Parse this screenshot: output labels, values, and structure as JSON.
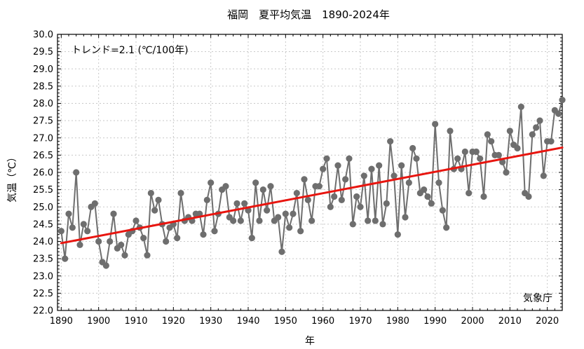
{
  "chart_data": {
    "type": "line",
    "title": "福岡　夏平均気温　1890-2024年",
    "xlabel": "年",
    "ylabel": "気温（℃）",
    "xlim": [
      1889,
      2024
    ],
    "ylim": [
      22.0,
      30.0
    ],
    "x_ticks": [
      "1890",
      "1900",
      "1910",
      "1920",
      "1930",
      "1940",
      "1950",
      "1960",
      "1970",
      "1980",
      "1990",
      "2000",
      "2010",
      "2020"
    ],
    "y_ticks": [
      "22.0",
      "22.5",
      "23.0",
      "23.5",
      "24.0",
      "24.5",
      "25.0",
      "25.5",
      "26.0",
      "26.5",
      "27.0",
      "27.5",
      "28.0",
      "28.5",
      "29.0",
      "29.5",
      "30.0"
    ],
    "grid": true,
    "trend_label": "トレンド=2.1 (℃/100年)",
    "source_label": "気象庁",
    "series": [
      {
        "color": "#6e6e6e",
        "x": [
          1890,
          1891,
          1892,
          1893,
          1894,
          1895,
          1896,
          1897,
          1898,
          1899,
          1900,
          1901,
          1902,
          1903,
          1904,
          1905,
          1906,
          1907,
          1908,
          1909,
          1910,
          1911,
          1912,
          1913,
          1914,
          1915,
          1916,
          1917,
          1918,
          1919,
          1920,
          1921,
          1922,
          1923,
          1924,
          1925,
          1926,
          1927,
          1928,
          1929,
          1930,
          1931,
          1932,
          1933,
          1934,
          1935,
          1936,
          1937,
          1938,
          1939,
          1940,
          1941,
          1942,
          1943,
          1944,
          1945,
          1946,
          1947,
          1948,
          1949,
          1950,
          1951,
          1952,
          1953,
          1954,
          1955,
          1956,
          1957,
          1958,
          1959,
          1960,
          1961,
          1962,
          1963,
          1964,
          1965,
          1966,
          1967,
          1968,
          1969,
          1970,
          1971,
          1972,
          1973,
          1974,
          1975,
          1976,
          1977,
          1978,
          1979,
          1980,
          1981,
          1982,
          1983,
          1984,
          1985,
          1986,
          1987,
          1988,
          1989,
          1990,
          1991,
          1992,
          1993,
          1994,
          1995,
          1996,
          1997,
          1998,
          1999,
          2000,
          2001,
          2002,
          2003,
          2004,
          2005,
          2006,
          2007,
          2008,
          2009,
          2010,
          2011,
          2012,
          2013,
          2014,
          2015,
          2016,
          2017,
          2018,
          2019,
          2020,
          2021,
          2022,
          2023,
          2024
        ],
        "values": [
          24.3,
          23.5,
          24.8,
          24.4,
          26.0,
          23.9,
          24.5,
          24.3,
          25.0,
          25.1,
          24.0,
          23.4,
          23.3,
          24.0,
          24.8,
          23.8,
          23.9,
          23.6,
          24.2,
          24.3,
          24.6,
          24.4,
          24.1,
          23.6,
          25.4,
          24.9,
          25.2,
          24.5,
          24.0,
          24.4,
          24.5,
          24.1,
          25.4,
          24.6,
          24.7,
          24.6,
          24.8,
          24.8,
          24.2,
          25.2,
          25.7,
          24.3,
          24.8,
          25.5,
          25.6,
          24.7,
          24.6,
          25.1,
          24.6,
          25.1,
          24.9,
          24.1,
          25.7,
          24.6,
          25.5,
          24.9,
          25.6,
          24.6,
          24.7,
          23.7,
          24.8,
          24.4,
          24.8,
          25.4,
          24.3,
          25.8,
          25.2,
          24.6,
          25.6,
          25.6,
          26.1,
          26.4,
          25.0,
          25.3,
          26.2,
          25.2,
          25.8,
          26.4,
          24.5,
          25.3,
          25.0,
          25.9,
          24.6,
          26.1,
          24.6,
          26.2,
          24.5,
          25.1,
          26.9,
          25.9,
          24.2,
          26.2,
          24.7,
          25.7,
          26.7,
          26.4,
          25.4,
          25.5,
          25.3,
          25.1,
          27.4,
          25.7,
          24.9,
          24.4,
          27.2,
          26.1,
          26.4,
          26.1,
          26.6,
          25.4,
          26.6,
          26.6,
          26.4,
          25.3,
          27.1,
          26.9,
          26.5,
          26.5,
          26.3,
          26.0,
          27.2,
          26.8,
          26.7,
          27.9,
          25.4,
          25.3,
          27.1,
          27.3,
          27.5,
          25.9,
          26.9,
          26.9,
          27.8,
          27.7,
          28.1
        ]
      }
    ],
    "trend_line": {
      "color": "#e8150f",
      "x": [
        1890,
        2024
      ],
      "values": [
        23.95,
        26.72
      ]
    }
  }
}
